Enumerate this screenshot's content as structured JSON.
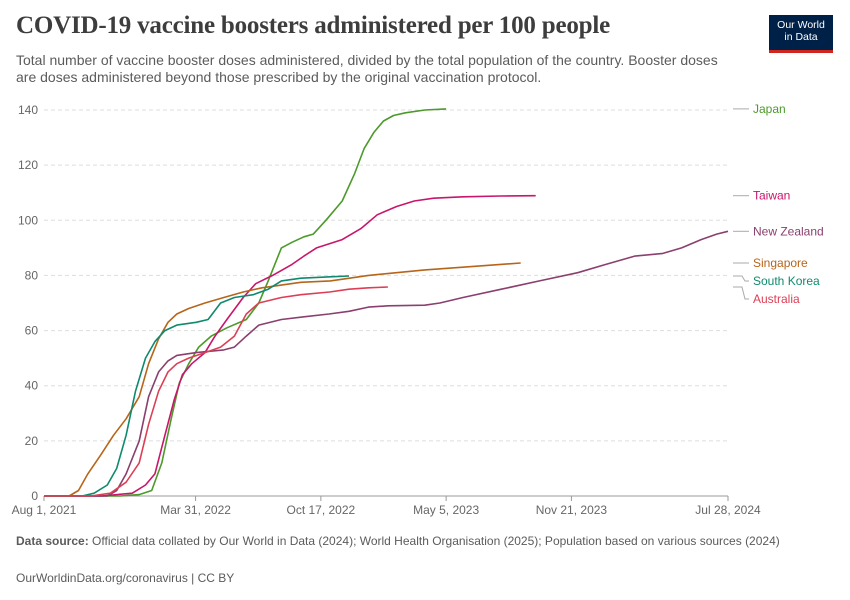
{
  "header": {
    "title": "COVID-19 vaccine boosters administered per 100 people",
    "subtitle": "Total number of vaccine booster doses administered, divided by the total population of the country. Booster doses are doses administered beyond those prescribed by the original vaccination protocol.",
    "logo_line1": "Our World",
    "logo_line2": "in Data"
  },
  "footer": {
    "source_label": "Data source:",
    "source_text": "Official data collated by Our World in Data (2024); World Health Organisation (2025); Population based on various sources (2024)",
    "credit": "OurWorldinData.org/coronavirus | CC BY"
  },
  "colors": {
    "Japan": "#4c9a2a",
    "Taiwan": "#c8166b",
    "New Zealand": "#8a3f6e",
    "Singapore": "#b7651a",
    "South Korea": "#0f8a6e",
    "Australia": "#dc3f55",
    "grid": "#dddddd",
    "axis": "#999999",
    "logo_bg": "#002147",
    "logo_accent": "#ce261e"
  },
  "chart_data": {
    "type": "line",
    "title": "COVID-19 vaccine boosters administered per 100 people",
    "x_type": "date",
    "xlim": [
      "2021-08-01",
      "2024-07-28"
    ],
    "ylim": [
      0,
      140
    ],
    "x_ticks": [
      "2021-08-01",
      "2022-03-31",
      "2022-10-17",
      "2023-05-05",
      "2023-11-21",
      "2024-07-28"
    ],
    "x_tick_labels": [
      "Aug 1, 2021",
      "Mar 31, 2022",
      "Oct 17, 2022",
      "May 5, 2023",
      "Nov 21, 2023",
      "Jul 28, 2024"
    ],
    "y_ticks": [
      0,
      20,
      40,
      60,
      80,
      100,
      120,
      140
    ],
    "grid": "horizontal dashed",
    "legend": "right, labels at line ends",
    "series": [
      {
        "name": "Japan",
        "points": [
          [
            "2021-08-01",
            0
          ],
          [
            "2021-11-30",
            0
          ],
          [
            "2021-12-31",
            0.5
          ],
          [
            "2022-01-20",
            2
          ],
          [
            "2022-02-05",
            12
          ],
          [
            "2022-02-20",
            28
          ],
          [
            "2022-03-05",
            41
          ],
          [
            "2022-03-20",
            48
          ],
          [
            "2022-04-05",
            54
          ],
          [
            "2022-04-25",
            58
          ],
          [
            "2022-05-20",
            61
          ],
          [
            "2022-06-20",
            64
          ],
          [
            "2022-07-10",
            70
          ],
          [
            "2022-07-25",
            78
          ],
          [
            "2022-08-15",
            90
          ],
          [
            "2022-09-01",
            92
          ],
          [
            "2022-09-20",
            94
          ],
          [
            "2022-10-05",
            95
          ],
          [
            "2022-10-25",
            100
          ],
          [
            "2022-11-20",
            107
          ],
          [
            "2022-12-10",
            117
          ],
          [
            "2022-12-25",
            126
          ],
          [
            "2023-01-10",
            132
          ],
          [
            "2023-01-25",
            136
          ],
          [
            "2023-02-10",
            138
          ],
          [
            "2023-03-01",
            139
          ],
          [
            "2023-04-01",
            140
          ],
          [
            "2023-05-05",
            140.4
          ]
        ]
      },
      {
        "name": "Taiwan",
        "points": [
          [
            "2021-08-01",
            0
          ],
          [
            "2021-11-01",
            0
          ],
          [
            "2021-12-20",
            1
          ],
          [
            "2022-01-10",
            4
          ],
          [
            "2022-01-25",
            8
          ],
          [
            "2022-02-10",
            22
          ],
          [
            "2022-02-25",
            35
          ],
          [
            "2022-03-10",
            44
          ],
          [
            "2022-03-25",
            48
          ],
          [
            "2022-04-15",
            52
          ],
          [
            "2022-05-01",
            58
          ],
          [
            "2022-05-20",
            64
          ],
          [
            "2022-06-15",
            72
          ],
          [
            "2022-07-05",
            77
          ],
          [
            "2022-08-01",
            80
          ],
          [
            "2022-09-01",
            84
          ],
          [
            "2022-09-20",
            87
          ],
          [
            "2022-10-10",
            90
          ],
          [
            "2022-11-20",
            93
          ],
          [
            "2022-12-20",
            97
          ],
          [
            "2023-01-15",
            102
          ],
          [
            "2023-02-15",
            105
          ],
          [
            "2023-03-15",
            107
          ],
          [
            "2023-04-15",
            108
          ],
          [
            "2023-06-01",
            108.5
          ],
          [
            "2023-08-01",
            108.8
          ],
          [
            "2023-09-25",
            108.9
          ]
        ]
      },
      {
        "name": "New Zealand",
        "points": [
          [
            "2021-08-01",
            0
          ],
          [
            "2021-11-10",
            0
          ],
          [
            "2021-11-25",
            2
          ],
          [
            "2021-12-10",
            8
          ],
          [
            "2021-12-31",
            20
          ],
          [
            "2022-01-15",
            36
          ],
          [
            "2022-01-31",
            45
          ],
          [
            "2022-02-15",
            49
          ],
          [
            "2022-03-01",
            51
          ],
          [
            "2022-04-01",
            52
          ],
          [
            "2022-05-15",
            53
          ],
          [
            "2022-06-01",
            54
          ],
          [
            "2022-06-20",
            58
          ],
          [
            "2022-07-10",
            62
          ],
          [
            "2022-08-15",
            64
          ],
          [
            "2022-09-20",
            65
          ],
          [
            "2022-10-30",
            66
          ],
          [
            "2022-12-01",
            67
          ],
          [
            "2023-01-01",
            68.5
          ],
          [
            "2023-02-01",
            69
          ],
          [
            "2023-04-01",
            69.2
          ],
          [
            "2023-04-25",
            70
          ],
          [
            "2023-06-01",
            72
          ],
          [
            "2023-08-01",
            75
          ],
          [
            "2023-10-01",
            78
          ],
          [
            "2023-12-01",
            81
          ],
          [
            "2024-01-15",
            84
          ],
          [
            "2024-03-01",
            87
          ],
          [
            "2024-04-15",
            88
          ],
          [
            "2024-05-15",
            90
          ],
          [
            "2024-06-15",
            93
          ],
          [
            "2024-07-10",
            95
          ],
          [
            "2024-07-28",
            96
          ]
        ]
      },
      {
        "name": "Singapore",
        "points": [
          [
            "2021-08-01",
            0
          ],
          [
            "2021-09-10",
            0
          ],
          [
            "2021-09-25",
            2
          ],
          [
            "2021-10-10",
            8
          ],
          [
            "2021-10-31",
            15
          ],
          [
            "2021-11-20",
            22
          ],
          [
            "2021-12-10",
            28
          ],
          [
            "2021-12-31",
            36
          ],
          [
            "2022-01-15",
            48
          ],
          [
            "2022-01-31",
            57
          ],
          [
            "2022-02-15",
            63
          ],
          [
            "2022-03-01",
            66
          ],
          [
            "2022-03-20",
            68
          ],
          [
            "2022-04-15",
            70
          ],
          [
            "2022-05-15",
            72
          ],
          [
            "2022-06-15",
            74
          ],
          [
            "2022-07-15",
            75.5
          ],
          [
            "2022-08-15",
            76.5
          ],
          [
            "2022-09-15",
            77.5
          ],
          [
            "2022-11-01",
            78
          ],
          [
            "2023-01-01",
            80
          ],
          [
            "2023-04-01",
            82
          ],
          [
            "2023-07-01",
            83.5
          ],
          [
            "2023-09-01",
            84.5
          ]
        ]
      },
      {
        "name": "South Korea",
        "points": [
          [
            "2021-08-01",
            0
          ],
          [
            "2021-10-01",
            0
          ],
          [
            "2021-10-20",
            1
          ],
          [
            "2021-11-10",
            4
          ],
          [
            "2021-11-25",
            10
          ],
          [
            "2021-12-10",
            22
          ],
          [
            "2021-12-25",
            38
          ],
          [
            "2022-01-10",
            50
          ],
          [
            "2022-01-25",
            56
          ],
          [
            "2022-02-10",
            60
          ],
          [
            "2022-03-01",
            62
          ],
          [
            "2022-04-01",
            63
          ],
          [
            "2022-04-20",
            64
          ],
          [
            "2022-05-10",
            70
          ],
          [
            "2022-06-01",
            72
          ],
          [
            "2022-07-01",
            73
          ],
          [
            "2022-07-25",
            75
          ],
          [
            "2022-08-15",
            78
          ],
          [
            "2022-09-15",
            79
          ],
          [
            "2022-11-01",
            79.5
          ],
          [
            "2022-12-01",
            79.8
          ]
        ]
      },
      {
        "name": "Australia",
        "points": [
          [
            "2021-08-01",
            0
          ],
          [
            "2021-10-15",
            0
          ],
          [
            "2021-11-15",
            1
          ],
          [
            "2021-12-10",
            5
          ],
          [
            "2021-12-31",
            12
          ],
          [
            "2022-01-15",
            26
          ],
          [
            "2022-01-31",
            38
          ],
          [
            "2022-02-15",
            45
          ],
          [
            "2022-03-01",
            48
          ],
          [
            "2022-03-20",
            50
          ],
          [
            "2022-04-15",
            52
          ],
          [
            "2022-05-10",
            54
          ],
          [
            "2022-06-01",
            58
          ],
          [
            "2022-06-20",
            66
          ],
          [
            "2022-07-10",
            70
          ],
          [
            "2022-08-15",
            72
          ],
          [
            "2022-09-15",
            73
          ],
          [
            "2022-10-31",
            74
          ],
          [
            "2022-12-01",
            75
          ],
          [
            "2023-01-01",
            75.5
          ],
          [
            "2023-02-01",
            75.8
          ]
        ]
      }
    ],
    "legend_entries": [
      "Japan",
      "Taiwan",
      "New Zealand",
      "Singapore",
      "South Korea",
      "Australia"
    ]
  }
}
